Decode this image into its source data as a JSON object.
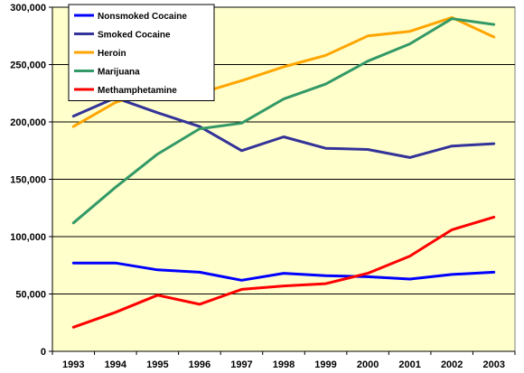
{
  "chart_data": {
    "type": "line",
    "title": "",
    "xlabel": "",
    "ylabel": "",
    "ylim": [
      0,
      300000
    ],
    "grid": true,
    "legend_position": "top-left",
    "plot_background": "#ffffcc",
    "x": [
      "1993",
      "1994",
      "1995",
      "1996",
      "1997",
      "1998",
      "1999",
      "2000",
      "2001",
      "2002",
      "2003"
    ],
    "y_ticks": [
      "0",
      "50,000",
      "100,000",
      "150,000",
      "200,000",
      "250,000",
      "300,000"
    ],
    "y_tick_values": [
      0,
      50000,
      100000,
      150000,
      200000,
      250000,
      300000
    ],
    "series": [
      {
        "name": "Nonsmoked Cocaine",
        "color": "#0000ff",
        "values": [
          77000,
          77000,
          71000,
          69000,
          62000,
          68000,
          66000,
          65000,
          63000,
          67000,
          69000
        ]
      },
      {
        "name": "Smoked Cocaine",
        "color": "#333399",
        "values": [
          205000,
          221000,
          208000,
          196000,
          175000,
          187000,
          177000,
          176000,
          169000,
          179000,
          181000
        ]
      },
      {
        "name": "Heroin",
        "color": "#ffa500",
        "values": [
          196000,
          217000,
          229000,
          225000,
          236000,
          248000,
          258000,
          275000,
          279000,
          291000,
          274000
        ]
      },
      {
        "name": "Marijuana",
        "color": "#339966",
        "values": [
          112000,
          143000,
          172000,
          194000,
          199000,
          220000,
          233000,
          253000,
          268000,
          290000,
          285000
        ]
      },
      {
        "name": "Methamphetamine",
        "color": "#ff0000",
        "values": [
          21000,
          34000,
          49000,
          41000,
          54000,
          57000,
          59000,
          68000,
          83000,
          106000,
          117000
        ]
      }
    ]
  }
}
